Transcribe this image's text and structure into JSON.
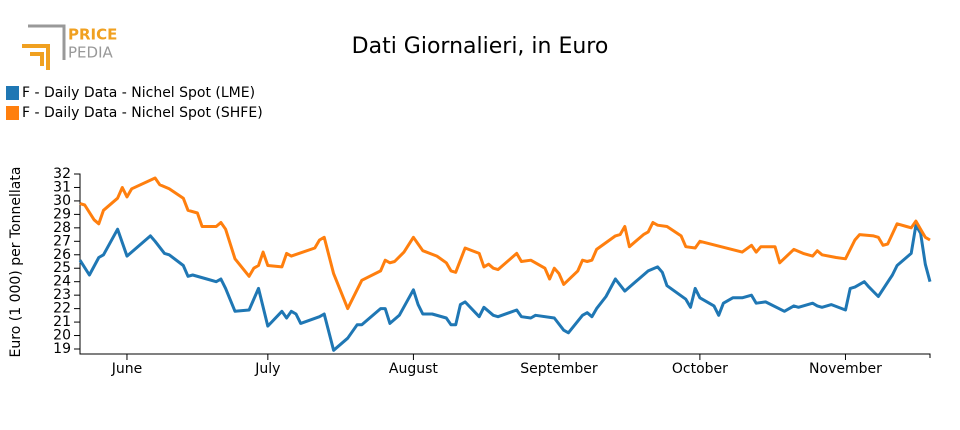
{
  "logo": {
    "line1": "PRICE",
    "line2": "PEDIA"
  },
  "chart_data": {
    "type": "line",
    "title": "Dati Giornalieri, in Euro",
    "y_label": "Euro (1 000) per Tonnellata",
    "xlim": [
      0,
      181
    ],
    "xticks": [
      {
        "value": 10,
        "label": "June"
      },
      {
        "value": 40,
        "label": "July"
      },
      {
        "value": 71,
        "label": "August"
      },
      {
        "value": 102,
        "label": "September"
      },
      {
        "value": 132,
        "label": "October"
      },
      {
        "value": 163,
        "label": "November"
      }
    ],
    "ylim": [
      19,
      32
    ],
    "yticks": [
      19,
      20,
      21,
      22,
      23,
      24,
      25,
      26,
      27,
      28,
      29,
      30,
      31,
      32
    ],
    "legend": "top-left",
    "series": [
      {
        "name": "F - Daily Data - Nichel Spot (LME)",
        "color": "#1f77b4",
        "x": [
          0,
          2,
          4,
          5,
          8,
          10,
          13,
          15,
          16,
          18,
          19,
          22,
          23,
          24,
          27,
          29,
          30,
          31,
          33,
          36,
          38,
          40,
          43,
          44,
          45,
          46,
          47,
          51,
          52,
          54,
          57,
          59,
          60,
          64,
          65,
          66,
          68,
          71,
          72,
          73,
          75,
          78,
          79,
          80,
          81,
          82,
          85,
          86,
          88,
          89,
          93,
          94,
          96,
          97,
          101,
          103,
          104,
          107,
          108,
          109,
          110,
          112,
          114,
          116,
          119,
          121,
          123,
          124,
          125,
          129,
          130,
          131,
          132,
          135,
          136,
          137,
          139,
          141,
          143,
          144,
          146,
          150,
          152,
          153,
          156,
          157,
          158,
          160,
          163,
          164,
          165,
          167,
          168,
          170,
          173,
          174,
          177,
          178,
          179,
          180,
          181
        ],
        "values": [
          25.6,
          24.5,
          25.8,
          26.0,
          27.9,
          25.9,
          26.8,
          27.4,
          27.0,
          26.1,
          26.0,
          25.2,
          24.4,
          24.5,
          24.2,
          24.0,
          24.2,
          23.5,
          21.8,
          21.9,
          23.5,
          20.7,
          21.8,
          21.3,
          21.8,
          21.6,
          20.9,
          21.4,
          21.6,
          18.9,
          19.8,
          20.8,
          20.8,
          22.0,
          22.0,
          20.9,
          21.5,
          23.4,
          22.3,
          21.6,
          21.6,
          21.3,
          20.8,
          20.8,
          22.3,
          22.5,
          21.4,
          22.1,
          21.5,
          21.4,
          21.9,
          21.4,
          21.3,
          21.5,
          21.3,
          20.4,
          20.2,
          21.5,
          21.7,
          21.4,
          22.0,
          22.9,
          24.2,
          23.3,
          24.2,
          24.8,
          25.1,
          24.7,
          23.7,
          22.7,
          22.1,
          23.5,
          22.8,
          22.2,
          21.5,
          22.4,
          22.8,
          22.8,
          23.0,
          22.4,
          22.5,
          21.8,
          22.2,
          22.1,
          22.4,
          22.2,
          22.1,
          22.3,
          21.9,
          23.5,
          23.6,
          24.0,
          23.6,
          22.9,
          24.5,
          25.2,
          26.1,
          28.2,
          27.6,
          25.3,
          24.0
        ]
      },
      {
        "name": "F - Daily Data - Nichel Spot (SHFE)",
        "color": "#ff7f0e",
        "x": [
          0,
          1,
          3,
          4,
          5,
          8,
          9,
          10,
          11,
          16,
          17,
          19,
          22,
          23,
          25,
          26,
          29,
          30,
          31,
          33,
          36,
          37,
          38,
          39,
          40,
          43,
          44,
          45,
          50,
          51,
          52,
          54,
          57,
          60,
          64,
          65,
          66,
          67,
          69,
          71,
          72,
          73,
          76,
          78,
          79,
          80,
          82,
          85,
          86,
          87,
          88,
          89,
          93,
          94,
          96,
          99,
          100,
          101,
          102,
          103,
          106,
          107,
          108,
          109,
          110,
          114,
          115,
          116,
          117,
          120,
          121,
          122,
          123,
          125,
          128,
          129,
          131,
          132,
          141,
          143,
          144,
          145,
          148,
          149,
          152,
          154,
          156,
          157,
          158,
          161,
          163,
          165,
          166,
          169,
          170,
          171,
          172,
          174,
          176,
          177,
          178,
          179,
          180,
          181
        ],
        "values": [
          29.8,
          29.7,
          28.6,
          28.3,
          29.3,
          30.2,
          31.0,
          30.3,
          30.9,
          31.7,
          31.2,
          30.9,
          30.2,
          29.3,
          29.1,
          28.1,
          28.1,
          28.4,
          27.9,
          25.7,
          24.4,
          25.0,
          25.2,
          26.2,
          25.2,
          25.1,
          26.1,
          25.9,
          26.5,
          27.1,
          27.3,
          24.6,
          22.0,
          24.1,
          24.8,
          25.6,
          25.4,
          25.5,
          26.2,
          27.3,
          26.8,
          26.3,
          25.9,
          25.4,
          24.8,
          24.7,
          26.5,
          26.1,
          25.1,
          25.3,
          25.0,
          24.9,
          26.1,
          25.5,
          25.6,
          25.0,
          24.2,
          25.0,
          24.6,
          23.8,
          24.8,
          25.6,
          25.5,
          25.6,
          26.4,
          27.4,
          27.5,
          28.1,
          26.6,
          27.5,
          27.7,
          28.4,
          28.2,
          28.1,
          27.4,
          26.6,
          26.5,
          27.0,
          26.2,
          26.7,
          26.2,
          26.6,
          26.6,
          25.4,
          26.4,
          26.1,
          25.9,
          26.3,
          26.0,
          25.8,
          25.7,
          27.1,
          27.5,
          27.4,
          27.3,
          26.7,
          26.8,
          28.3,
          28.1,
          28.0,
          28.5,
          27.9,
          27.3,
          27.1
        ]
      }
    ]
  }
}
